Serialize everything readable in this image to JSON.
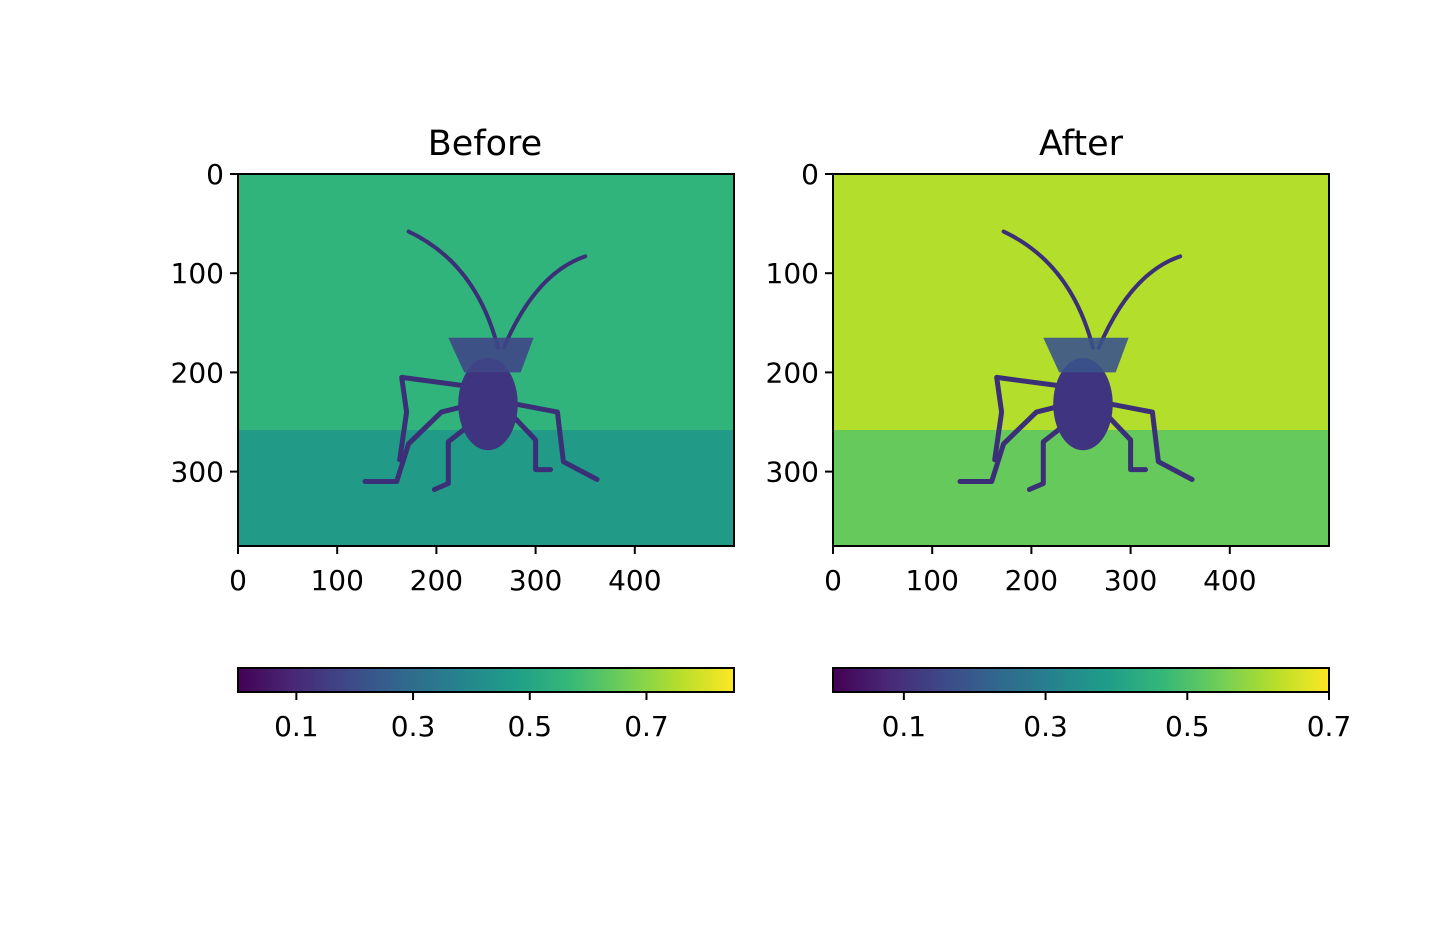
{
  "chart_data": [
    {
      "type": "image",
      "title": "Before",
      "colormap": "viridis",
      "image_extent": {
        "width": 500,
        "height": 375
      },
      "x_ticks": [
        0,
        100,
        200,
        300,
        400
      ],
      "y_ticks": [
        0,
        100,
        200,
        300
      ],
      "xlim": [
        0,
        500
      ],
      "ylim": [
        375,
        0
      ],
      "colorbar": {
        "orientation": "horizontal",
        "range": [
          0.0,
          0.85
        ],
        "ticks": [
          0.1,
          0.3,
          0.5,
          0.7
        ],
        "tick_labels": [
          "0.1",
          "0.3",
          "0.5",
          "0.7"
        ]
      },
      "background_level": 0.55,
      "ground_level": 0.45,
      "subject_level": 0.18
    },
    {
      "type": "image",
      "title": "After",
      "colormap": "viridis",
      "image_extent": {
        "width": 500,
        "height": 375
      },
      "x_ticks": [
        0,
        100,
        200,
        300,
        400
      ],
      "y_ticks": [
        0,
        100,
        200,
        300
      ],
      "xlim": [
        0,
        500
      ],
      "ylim": [
        375,
        0
      ],
      "colorbar": {
        "orientation": "horizontal",
        "range": [
          0.0,
          0.7
        ],
        "ticks": [
          0.1,
          0.3,
          0.5,
          0.7
        ],
        "tick_labels": [
          "0.1",
          "0.3",
          "0.5",
          "0.7"
        ]
      },
      "background_level": 0.62,
      "ground_level": 0.52,
      "subject_level": 0.18
    }
  ],
  "colors": {
    "viridis_stops": [
      "#440154",
      "#482878",
      "#3e4989",
      "#31688e",
      "#26828e",
      "#1f9e89",
      "#35b779",
      "#6ece58",
      "#b5de2b",
      "#fde725"
    ]
  }
}
